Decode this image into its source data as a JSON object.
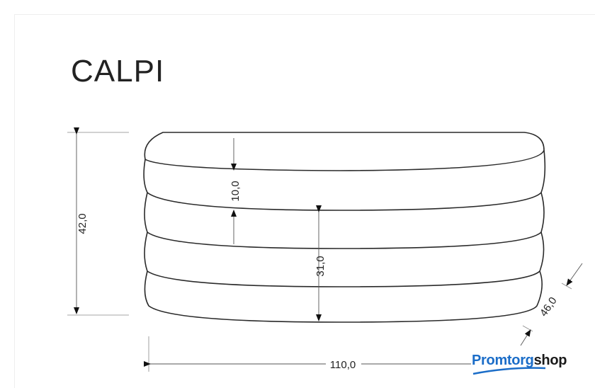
{
  "title": "CALPI",
  "dimensions": {
    "height_total": "42,0",
    "cushion_height": "10,0",
    "seat_height": "31,0",
    "width": "110,0",
    "depth": "46,0"
  },
  "logo": {
    "part1": "Promtorg",
    "part2": "shop",
    "color_primary": "#1b6dc8"
  }
}
